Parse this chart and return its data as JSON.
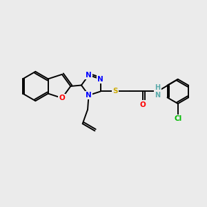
{
  "background_color": "#ebebeb",
  "bond_color": "#000000",
  "atom_colors": {
    "N": "#0000ff",
    "O": "#ff0000",
    "S": "#ccaa00",
    "Cl": "#00bb00",
    "H": "#5aabab",
    "C": "#000000"
  },
  "figsize": [
    3.0,
    3.0
  ],
  "dpi": 100,
  "lw": 1.4,
  "fontsize": 7.5
}
